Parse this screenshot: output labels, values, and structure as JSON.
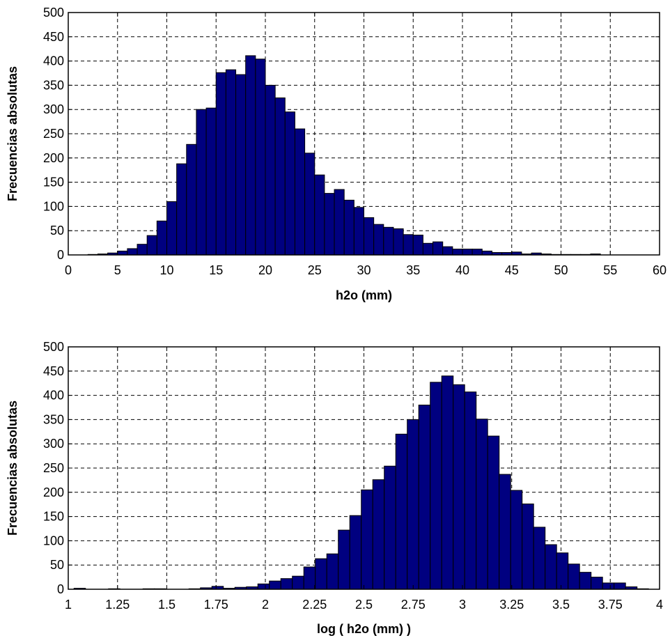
{
  "chart_data": [
    {
      "type": "bar",
      "title": "",
      "xlabel": "h2o (mm)",
      "ylabel": "Frecuencias absolutas",
      "xlim": [
        0,
        60
      ],
      "ylim": [
        0,
        500
      ],
      "grid": true,
      "x_ticks": [
        "0",
        "5",
        "10",
        "15",
        "20",
        "25",
        "30",
        "35",
        "40",
        "45",
        "50",
        "55",
        "60"
      ],
      "y_ticks": [
        "0",
        "50",
        "100",
        "150",
        "200",
        "250",
        "300",
        "350",
        "400",
        "450",
        "500"
      ],
      "bin_width": 1,
      "bin_start": 2.5,
      "values": [
        1,
        2,
        4,
        8,
        13,
        22,
        40,
        70,
        110,
        188,
        228,
        300,
        303,
        376,
        382,
        372,
        411,
        404,
        350,
        324,
        295,
        260,
        210,
        165,
        127,
        135,
        113,
        98,
        77,
        63,
        57,
        54,
        42,
        41,
        24,
        27,
        17,
        12,
        12,
        12,
        8,
        5,
        5,
        6,
        2,
        4,
        2,
        1,
        1,
        1,
        1,
        2
      ]
    },
    {
      "type": "bar",
      "title": "",
      "xlabel": "log ( h2o (mm) )",
      "ylabel": "Frecuencias absolutas",
      "xlim": [
        1,
        4
      ],
      "ylim": [
        0,
        500
      ],
      "grid": true,
      "x_ticks": [
        "1",
        "1.25",
        "1.5",
        "1.75",
        "2",
        "2.25",
        "2.5",
        "2.75",
        "3",
        "3.25",
        "3.5",
        "3.75",
        "4"
      ],
      "y_ticks": [
        "0",
        "50",
        "100",
        "150",
        "200",
        "250",
        "300",
        "350",
        "400",
        "450",
        "500"
      ],
      "bin_width": 0.0583,
      "bin_start": 1.0583,
      "values": [
        2,
        0,
        0,
        1,
        0,
        0,
        1,
        1,
        0,
        0,
        1,
        3,
        6,
        2,
        4,
        5,
        11,
        17,
        22,
        27,
        46,
        63,
        73,
        122,
        152,
        205,
        226,
        254,
        320,
        350,
        380,
        427,
        440,
        422,
        407,
        351,
        316,
        237,
        204,
        176,
        128,
        92,
        75,
        52,
        35,
        25,
        13,
        13,
        5,
        1
      ]
    }
  ]
}
